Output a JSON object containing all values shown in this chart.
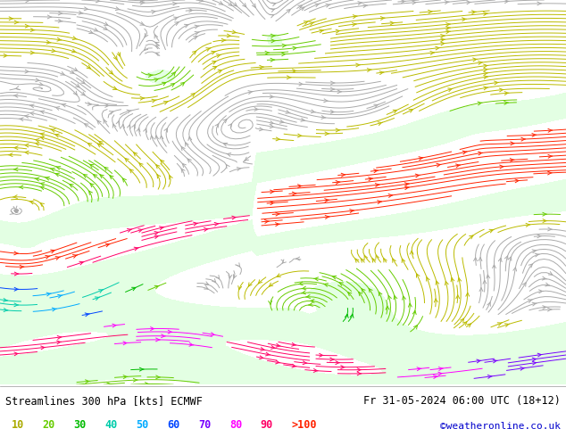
{
  "title_left": "Streamlines 300 hPa [kts] ECMWF",
  "title_right": "Fr 31-05-2024 06:00 UTC (18+12)",
  "credit": "©weatheronline.co.uk",
  "legend_values": [
    "10",
    "20",
    "30",
    "40",
    "50",
    "60",
    "70",
    "80",
    "90",
    ">100"
  ],
  "legend_colors": [
    "#aaaa00",
    "#66cc00",
    "#00bb00",
    "#00ccaa",
    "#00aaff",
    "#0044ff",
    "#7700ff",
    "#ff00ff",
    "#ff0066",
    "#ff2200"
  ],
  "plot_bg": "#ffffff",
  "bottom_bar_color": "#ffffff",
  "figsize": [
    6.34,
    4.9
  ],
  "dpi": 100,
  "speed_bands": [
    [
      0,
      12,
      "#aaaaaa"
    ],
    [
      12,
      22,
      "#bbbb00"
    ],
    [
      22,
      32,
      "#66cc00"
    ],
    [
      32,
      42,
      "#00bb00"
    ],
    [
      42,
      52,
      "#00ccaa"
    ],
    [
      52,
      62,
      "#00aaff"
    ],
    [
      62,
      72,
      "#0044ff"
    ],
    [
      72,
      82,
      "#7700ff"
    ],
    [
      82,
      92,
      "#ff00ff"
    ],
    [
      92,
      110,
      "#ff0066"
    ],
    [
      110,
      999,
      "#ff2200"
    ]
  ],
  "green_shade_color": "#ccffcc",
  "green_shade_alpha": 0.55
}
